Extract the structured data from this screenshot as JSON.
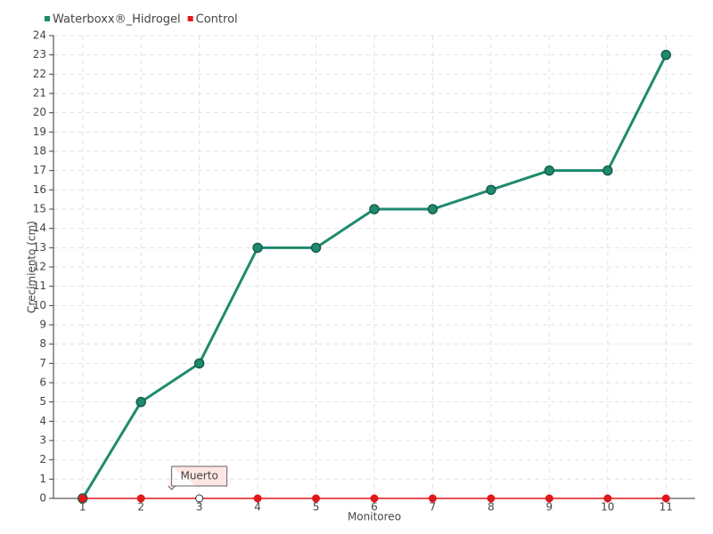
{
  "chart_data": {
    "type": "line",
    "categories": [
      "1",
      "2",
      "3",
      "4",
      "5",
      "6",
      "7",
      "8",
      "9",
      "10",
      "11"
    ],
    "series": [
      {
        "name": "Waterboxx®_Hidrogel",
        "color": "#1f8a6e",
        "values": [
          0,
          5,
          7,
          13,
          13,
          15,
          15,
          16,
          17,
          17,
          23
        ]
      },
      {
        "name": "Control",
        "color": "#e0181b",
        "values": [
          0,
          0,
          0,
          0,
          0,
          0,
          0,
          0,
          0,
          0,
          0
        ]
      }
    ],
    "x_label": "Monitoreo",
    "y_label": "Crecimiento (cm)",
    "ylim": [
      0,
      24
    ],
    "yticks": [
      0,
      1,
      2,
      3,
      4,
      5,
      6,
      7,
      8,
      9,
      10,
      11,
      12,
      13,
      14,
      15,
      16,
      17,
      18,
      19,
      20,
      21,
      22,
      23,
      24
    ],
    "grid": true,
    "legend": "top-left",
    "annotations": [
      {
        "text": "Muerto",
        "x": "3"
      }
    ]
  }
}
